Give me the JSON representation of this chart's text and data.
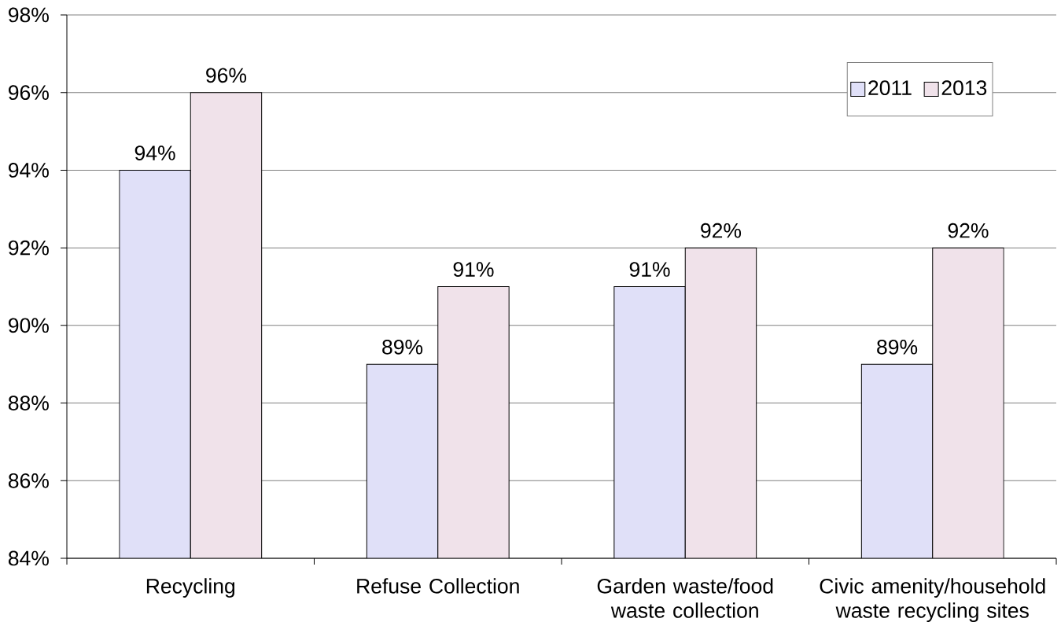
{
  "chart_data": {
    "type": "bar",
    "categories": [
      "Recycling",
      "Refuse Collection",
      "Garden waste/food waste collection",
      "Civic amenity/household waste recycling sites"
    ],
    "series": [
      {
        "name": "2011",
        "color": "#e0e0f8",
        "values": [
          94,
          89,
          91,
          89
        ],
        "value_labels": [
          "94%",
          "89%",
          "91%",
          "89%"
        ]
      },
      {
        "name": "2013",
        "color": "#f0e2ea",
        "values": [
          96,
          91,
          92,
          92
        ],
        "value_labels": [
          "96%",
          "91%",
          "92%",
          "92%"
        ]
      }
    ],
    "ylim": [
      84,
      98
    ],
    "yticks": [
      {
        "value": 84,
        "label": "84%"
      },
      {
        "value": 86,
        "label": "86%"
      },
      {
        "value": 88,
        "label": "88%"
      },
      {
        "value": 90,
        "label": "90%"
      },
      {
        "value": 92,
        "label": "92%"
      },
      {
        "value": 94,
        "label": "94%"
      },
      {
        "value": 96,
        "label": "96%"
      },
      {
        "value": 98,
        "label": "98%"
      }
    ],
    "grid": "y",
    "legend": "top right"
  }
}
